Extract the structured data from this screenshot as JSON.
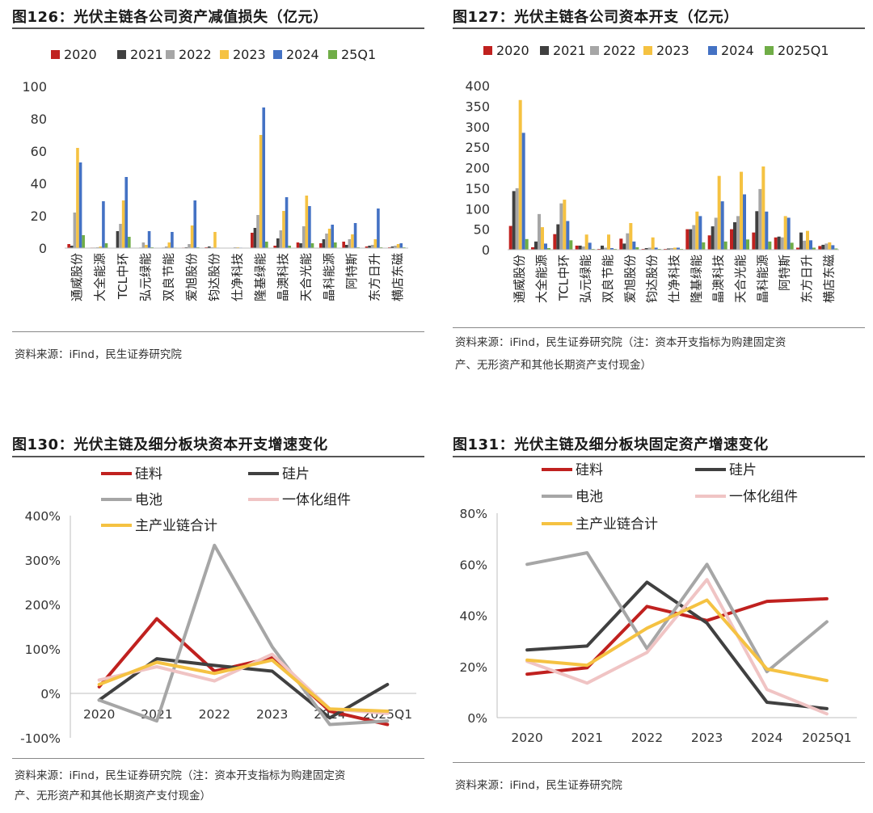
{
  "panels": {
    "p126": {
      "title": "图126：光伏主链各公司资产减值损失（亿元）",
      "source": "资料来源：iFind，民生证券研究院"
    },
    "p127": {
      "title": "图127：光伏主链各公司资本开支（亿元）",
      "source_line1": "资料来源：iFind，民生证券研究院（注：资本开支指标为购建固定资",
      "source_line2": "产、无形资产和其他长期资产支付现金）"
    },
    "p130": {
      "title": "图130：光伏主链及细分板块资本开支增速变化",
      "source_line1": "资料来源：iFind，民生证券研究院（注：资本开支指标为购建固定资",
      "source_line2": "产、无形资产和其他长期资产支付现金）"
    },
    "p131": {
      "title": "图131：光伏主链及细分板块固定资产增速变化",
      "source": "资料来源：iFind，民生证券研究院"
    }
  },
  "colors": {
    "c2020": "#C0211F",
    "c2021": "#404040",
    "c2022": "#A6A6A6",
    "c2023": "#F5C242",
    "c2024": "#4472C4",
    "cQ1": "#70AD47",
    "silicon_material": "#C0211F",
    "wafer": "#404040",
    "cell": "#A6A6A6",
    "module": "#F0C4C4",
    "total": "#F5C242"
  },
  "chart_data": [
    {
      "id": "chart126",
      "type": "bar",
      "categories": [
        "通威股份",
        "大全能源",
        "TCL中环",
        "弘元绿能",
        "双良节能",
        "爱旭股份",
        "钧达股份",
        "仕净科技",
        "隆基绿能",
        "晶澳科技",
        "天合光能",
        "晶科能源",
        "阿特斯",
        "东方日升",
        "横店东磁"
      ],
      "series": [
        {
          "name": "2020",
          "values": [
            2.5,
            0.3,
            0.2,
            0.2,
            0.2,
            0.3,
            0.5,
            0.2,
            9.5,
            1.5,
            3.5,
            3,
            4,
            1,
            0.5
          ]
        },
        {
          "name": "2021",
          "values": [
            1.5,
            0.3,
            10.5,
            0.3,
            0.3,
            0.5,
            1,
            0.2,
            12.5,
            6,
            3,
            5.5,
            2,
            1.5,
            1
          ]
        },
        {
          "name": "2022",
          "values": [
            22,
            0.5,
            15,
            3.5,
            1,
            2.5,
            0.5,
            0.5,
            20.5,
            11,
            13.5,
            9,
            5.5,
            2,
            1.5
          ]
        },
        {
          "name": "2023",
          "values": [
            62,
            1,
            29.5,
            2,
            3.5,
            14,
            10,
            0.5,
            70,
            23,
            32.5,
            12,
            8.5,
            5.5,
            2.5
          ]
        },
        {
          "name": "2024",
          "values": [
            53,
            29,
            44,
            10.5,
            10,
            29.5,
            0.3,
            0.3,
            87,
            31.5,
            26,
            14.5,
            15.5,
            24.5,
            3
          ]
        },
        {
          "name": "25Q1",
          "values": [
            8,
            3,
            7,
            0.5,
            0.3,
            0.5,
            0.2,
            0.2,
            4,
            1.5,
            3,
            3.5,
            0.5,
            0.5,
            0.5
          ]
        }
      ],
      "ylim": [
        0,
        100
      ],
      "yticks": [
        0,
        20,
        40,
        60,
        80,
        100
      ],
      "legend_position": "top"
    },
    {
      "id": "chart127",
      "type": "bar",
      "categories": [
        "通威股份",
        "大全能源",
        "TCL中环",
        "弘元绿能",
        "双良节能",
        "爱旭股份",
        "钧达股份",
        "仕净科技",
        "隆基绿能",
        "晶澳科技",
        "天合光能",
        "晶科能源",
        "阿特斯",
        "东方日升",
        "横店东磁"
      ],
      "series": [
        {
          "name": "2020",
          "values": [
            58,
            6,
            38,
            10,
            2,
            27,
            2,
            2,
            50,
            35,
            50,
            42,
            30,
            5,
            9
          ]
        },
        {
          "name": "2021",
          "values": [
            143,
            20,
            62,
            10,
            10,
            15,
            4,
            3,
            50,
            57,
            67,
            94,
            32,
            42,
            12
          ]
        },
        {
          "name": "2022",
          "values": [
            150,
            87,
            113,
            8,
            5,
            40,
            5,
            4,
            60,
            78,
            82,
            148,
            30,
            22,
            15
          ]
        },
        {
          "name": "2023",
          "values": [
            365,
            55,
            122,
            37,
            37,
            65,
            30,
            5,
            93,
            180,
            190,
            203,
            82,
            46,
            18
          ]
        },
        {
          "name": "2024",
          "values": [
            285,
            15,
            70,
            17,
            4,
            20,
            5,
            5,
            82,
            118,
            135,
            93,
            78,
            23,
            11
          ]
        },
        {
          "name": "2025Q1",
          "values": [
            26,
            4,
            23,
            2,
            2,
            6,
            2,
            2,
            18,
            20,
            25,
            20,
            17,
            5,
            3
          ]
        }
      ],
      "ylim": [
        0,
        400
      ],
      "yticks": [
        0,
        50,
        100,
        150,
        200,
        250,
        300,
        350,
        400
      ],
      "legend_position": "top"
    },
    {
      "id": "chart130",
      "type": "line",
      "x": [
        "2020",
        "2021",
        "2022",
        "2023",
        "2024",
        "2025Q1"
      ],
      "series": [
        {
          "name": "硅料",
          "values": [
            15,
            168,
            50,
            80,
            -40,
            -70
          ]
        },
        {
          "name": "硅片",
          "values": [
            -15,
            78,
            63,
            50,
            -55,
            20
          ]
        },
        {
          "name": "电池",
          "values": [
            -15,
            -62,
            333,
            105,
            -70,
            -62
          ]
        },
        {
          "name": "一体化组件",
          "values": [
            30,
            60,
            28,
            88,
            -35,
            -45
          ]
        },
        {
          "name": "主产业链合计",
          "values": [
            20,
            70,
            45,
            75,
            -35,
            -40
          ]
        }
      ],
      "ylim": [
        -100,
        400
      ],
      "yticks": [
        "-100%",
        "0%",
        "100%",
        "200%",
        "300%",
        "400%"
      ],
      "legend_position": "top-left"
    },
    {
      "id": "chart131",
      "type": "line",
      "x": [
        "2020",
        "2021",
        "2022",
        "2023",
        "2024",
        "2025Q1"
      ],
      "series": [
        {
          "name": "硅料",
          "values": [
            17,
            19.5,
            43.5,
            38,
            45.5,
            46.5
          ]
        },
        {
          "name": "硅片",
          "values": [
            26.5,
            28,
            53,
            37,
            6,
            3.5
          ]
        },
        {
          "name": "电池",
          "values": [
            60,
            64.5,
            27,
            60,
            18,
            37.5
          ]
        },
        {
          "name": "一体化组件",
          "values": [
            22,
            13.5,
            25.5,
            54,
            11,
            1.5
          ]
        },
        {
          "name": "主产业链合计",
          "values": [
            22.5,
            20.5,
            35,
            46,
            19,
            14.5
          ]
        }
      ],
      "ylim": [
        0,
        80
      ],
      "yticks": [
        "0%",
        "20%",
        "40%",
        "60%",
        "80%"
      ],
      "legend_position": "top-left"
    }
  ]
}
